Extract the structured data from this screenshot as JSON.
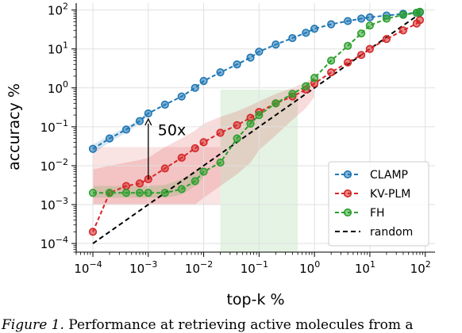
{
  "chart_data": {
    "type": "line",
    "title": "",
    "xlabel": "top-k %",
    "ylabel": "accuracy %",
    "x_scale": "log",
    "y_scale": "log",
    "xlim": [
      5e-05,
      150
    ],
    "ylim": [
      6e-05,
      150
    ],
    "x_ticks": [
      0.0001,
      0.001,
      0.01,
      0.1,
      1,
      10,
      100
    ],
    "x_tick_labels": [
      {
        "base": "10",
        "exp": "−4"
      },
      {
        "base": "10",
        "exp": "−3"
      },
      {
        "base": "10",
        "exp": "−2"
      },
      {
        "base": "10",
        "exp": "−1"
      },
      {
        "base": "10",
        "exp": "0"
      },
      {
        "base": "10",
        "exp": "1"
      },
      {
        "base": "10",
        "exp": "2"
      }
    ],
    "y_ticks": [
      0.0001,
      0.001,
      0.01,
      0.1,
      1,
      10,
      100
    ],
    "y_tick_labels": [
      {
        "base": "10",
        "exp": "−4"
      },
      {
        "base": "10",
        "exp": "−3"
      },
      {
        "base": "10",
        "exp": "−2"
      },
      {
        "base": "10",
        "exp": "−1"
      },
      {
        "base": "10",
        "exp": "0"
      },
      {
        "base": "10",
        "exp": "1"
      },
      {
        "base": "10",
        "exp": "2"
      }
    ],
    "grid": true,
    "legend_position": "bottom-right",
    "series": [
      {
        "name": "CLAMP",
        "color": "#1f77b4",
        "marker": "circle",
        "line_style": "dashed",
        "x": [
          0.0001,
          0.0002,
          0.0004,
          0.0007,
          0.001,
          0.002,
          0.004,
          0.007,
          0.01,
          0.02,
          0.04,
          0.07,
          0.1,
          0.2,
          0.4,
          0.7,
          1,
          2,
          4,
          7,
          10,
          20,
          40,
          70,
          80
        ],
        "y": [
          0.027,
          0.05,
          0.085,
          0.14,
          0.22,
          0.37,
          0.6,
          1.0,
          1.5,
          2.5,
          4.0,
          6.0,
          8.5,
          13,
          19,
          26,
          33,
          43,
          52,
          60,
          65,
          72,
          80,
          85,
          87
        ]
      },
      {
        "name": "KV-PLM",
        "color": "#d62728",
        "marker": "circle",
        "line_style": "dashed",
        "x": [
          0.0001,
          0.0002,
          0.0004,
          0.0007,
          0.001,
          0.002,
          0.004,
          0.007,
          0.01,
          0.02,
          0.04,
          0.07,
          0.1,
          0.2,
          0.4,
          0.7,
          1,
          2,
          4,
          7,
          10,
          20,
          40,
          70,
          80
        ],
        "y": [
          0.0002,
          0.002,
          0.003,
          0.0035,
          0.0045,
          0.0085,
          0.016,
          0.028,
          0.04,
          0.07,
          0.11,
          0.17,
          0.24,
          0.4,
          0.6,
          0.9,
          1.3,
          2.5,
          4.5,
          7,
          10,
          18,
          30,
          45,
          55
        ]
      },
      {
        "name": "FH",
        "color": "#2ca02c",
        "marker": "circle",
        "line_style": "dashed",
        "x": [
          0.0001,
          0.0002,
          0.0004,
          0.0007,
          0.001,
          0.002,
          0.004,
          0.007,
          0.01,
          0.02,
          0.04,
          0.07,
          0.1,
          0.2,
          0.4,
          0.7,
          1,
          2,
          4,
          7,
          10,
          20,
          40,
          70,
          80
        ],
        "y": [
          0.002,
          0.002,
          0.002,
          0.002,
          0.002,
          0.002,
          0.0025,
          0.004,
          0.007,
          0.012,
          0.05,
          0.12,
          0.2,
          0.4,
          0.7,
          1.1,
          1.8,
          5,
          12,
          25,
          40,
          60,
          75,
          85,
          90
        ]
      },
      {
        "name": "random",
        "color": "#000000",
        "marker": "none",
        "line_style": "dashed",
        "x": [
          0.0001,
          80
        ],
        "y": [
          0.0001,
          80
        ]
      }
    ],
    "bands": [
      {
        "series": "CLAMP",
        "color": "#1f77b4",
        "x": [
          0.0001,
          0.0002,
          0.0004,
          0.0007,
          0.001
        ],
        "lower": [
          0.02,
          0.04,
          0.07,
          0.12,
          0.19
        ],
        "upper": [
          0.035,
          0.06,
          0.1,
          0.16,
          0.25
        ]
      },
      {
        "series": "KV-PLM",
        "color": "#d62728",
        "x": [
          0.0001,
          0.0002,
          0.0004,
          0.0007,
          0.001,
          0.002,
          0.004,
          0.007,
          0.01,
          0.02,
          0.04,
          0.07,
          0.1,
          0.2,
          0.4,
          0.7,
          1
        ],
        "lower": [
          0.001,
          0.001,
          0.001,
          0.001,
          0.001,
          0.001,
          0.001,
          0.001,
          0.0015,
          0.003,
          0.006,
          0.012,
          0.025,
          0.06,
          0.15,
          0.3,
          0.6
        ],
        "upper": [
          0.008,
          0.01,
          0.012,
          0.014,
          0.016,
          0.03,
          0.05,
          0.08,
          0.12,
          0.18,
          0.25,
          0.35,
          0.45,
          0.7,
          1.0,
          1.4,
          1.9
        ]
      },
      {
        "series": "FH",
        "color": "#2ca02c",
        "x": [
          0.0001,
          0.0002,
          0.0004,
          0.0007,
          0.001,
          0.002,
          0.004,
          0.007,
          0.01
        ],
        "lower": [
          0.0015,
          0.0015,
          0.0015,
          0.0015,
          0.0015,
          0.0015,
          0.0018,
          0.003,
          0.005
        ],
        "upper": [
          0.003,
          0.003,
          0.003,
          0.003,
          0.003,
          0.0032,
          0.0045,
          0.007,
          0.01
        ]
      }
    ],
    "shaded_x_regions": [
      {
        "series": "KV-PLM",
        "color": "#d62728",
        "x_range": [
          0.0001,
          0.02
        ],
        "y_range": [
          0.001,
          0.03
        ]
      },
      {
        "series": "FH",
        "color": "#2ca02c",
        "x_range": [
          0.02,
          0.5
        ],
        "y_range": [
          6e-05,
          0.9
        ]
      }
    ],
    "annotations": [
      {
        "text": "50x",
        "x_from": 0.001,
        "y_from": 0.0045,
        "x_to": 0.001,
        "y_to": 0.22
      }
    ]
  },
  "caption": {
    "lead": "Figure 1.",
    "text": " Performance at retrieving active molecules from a"
  }
}
